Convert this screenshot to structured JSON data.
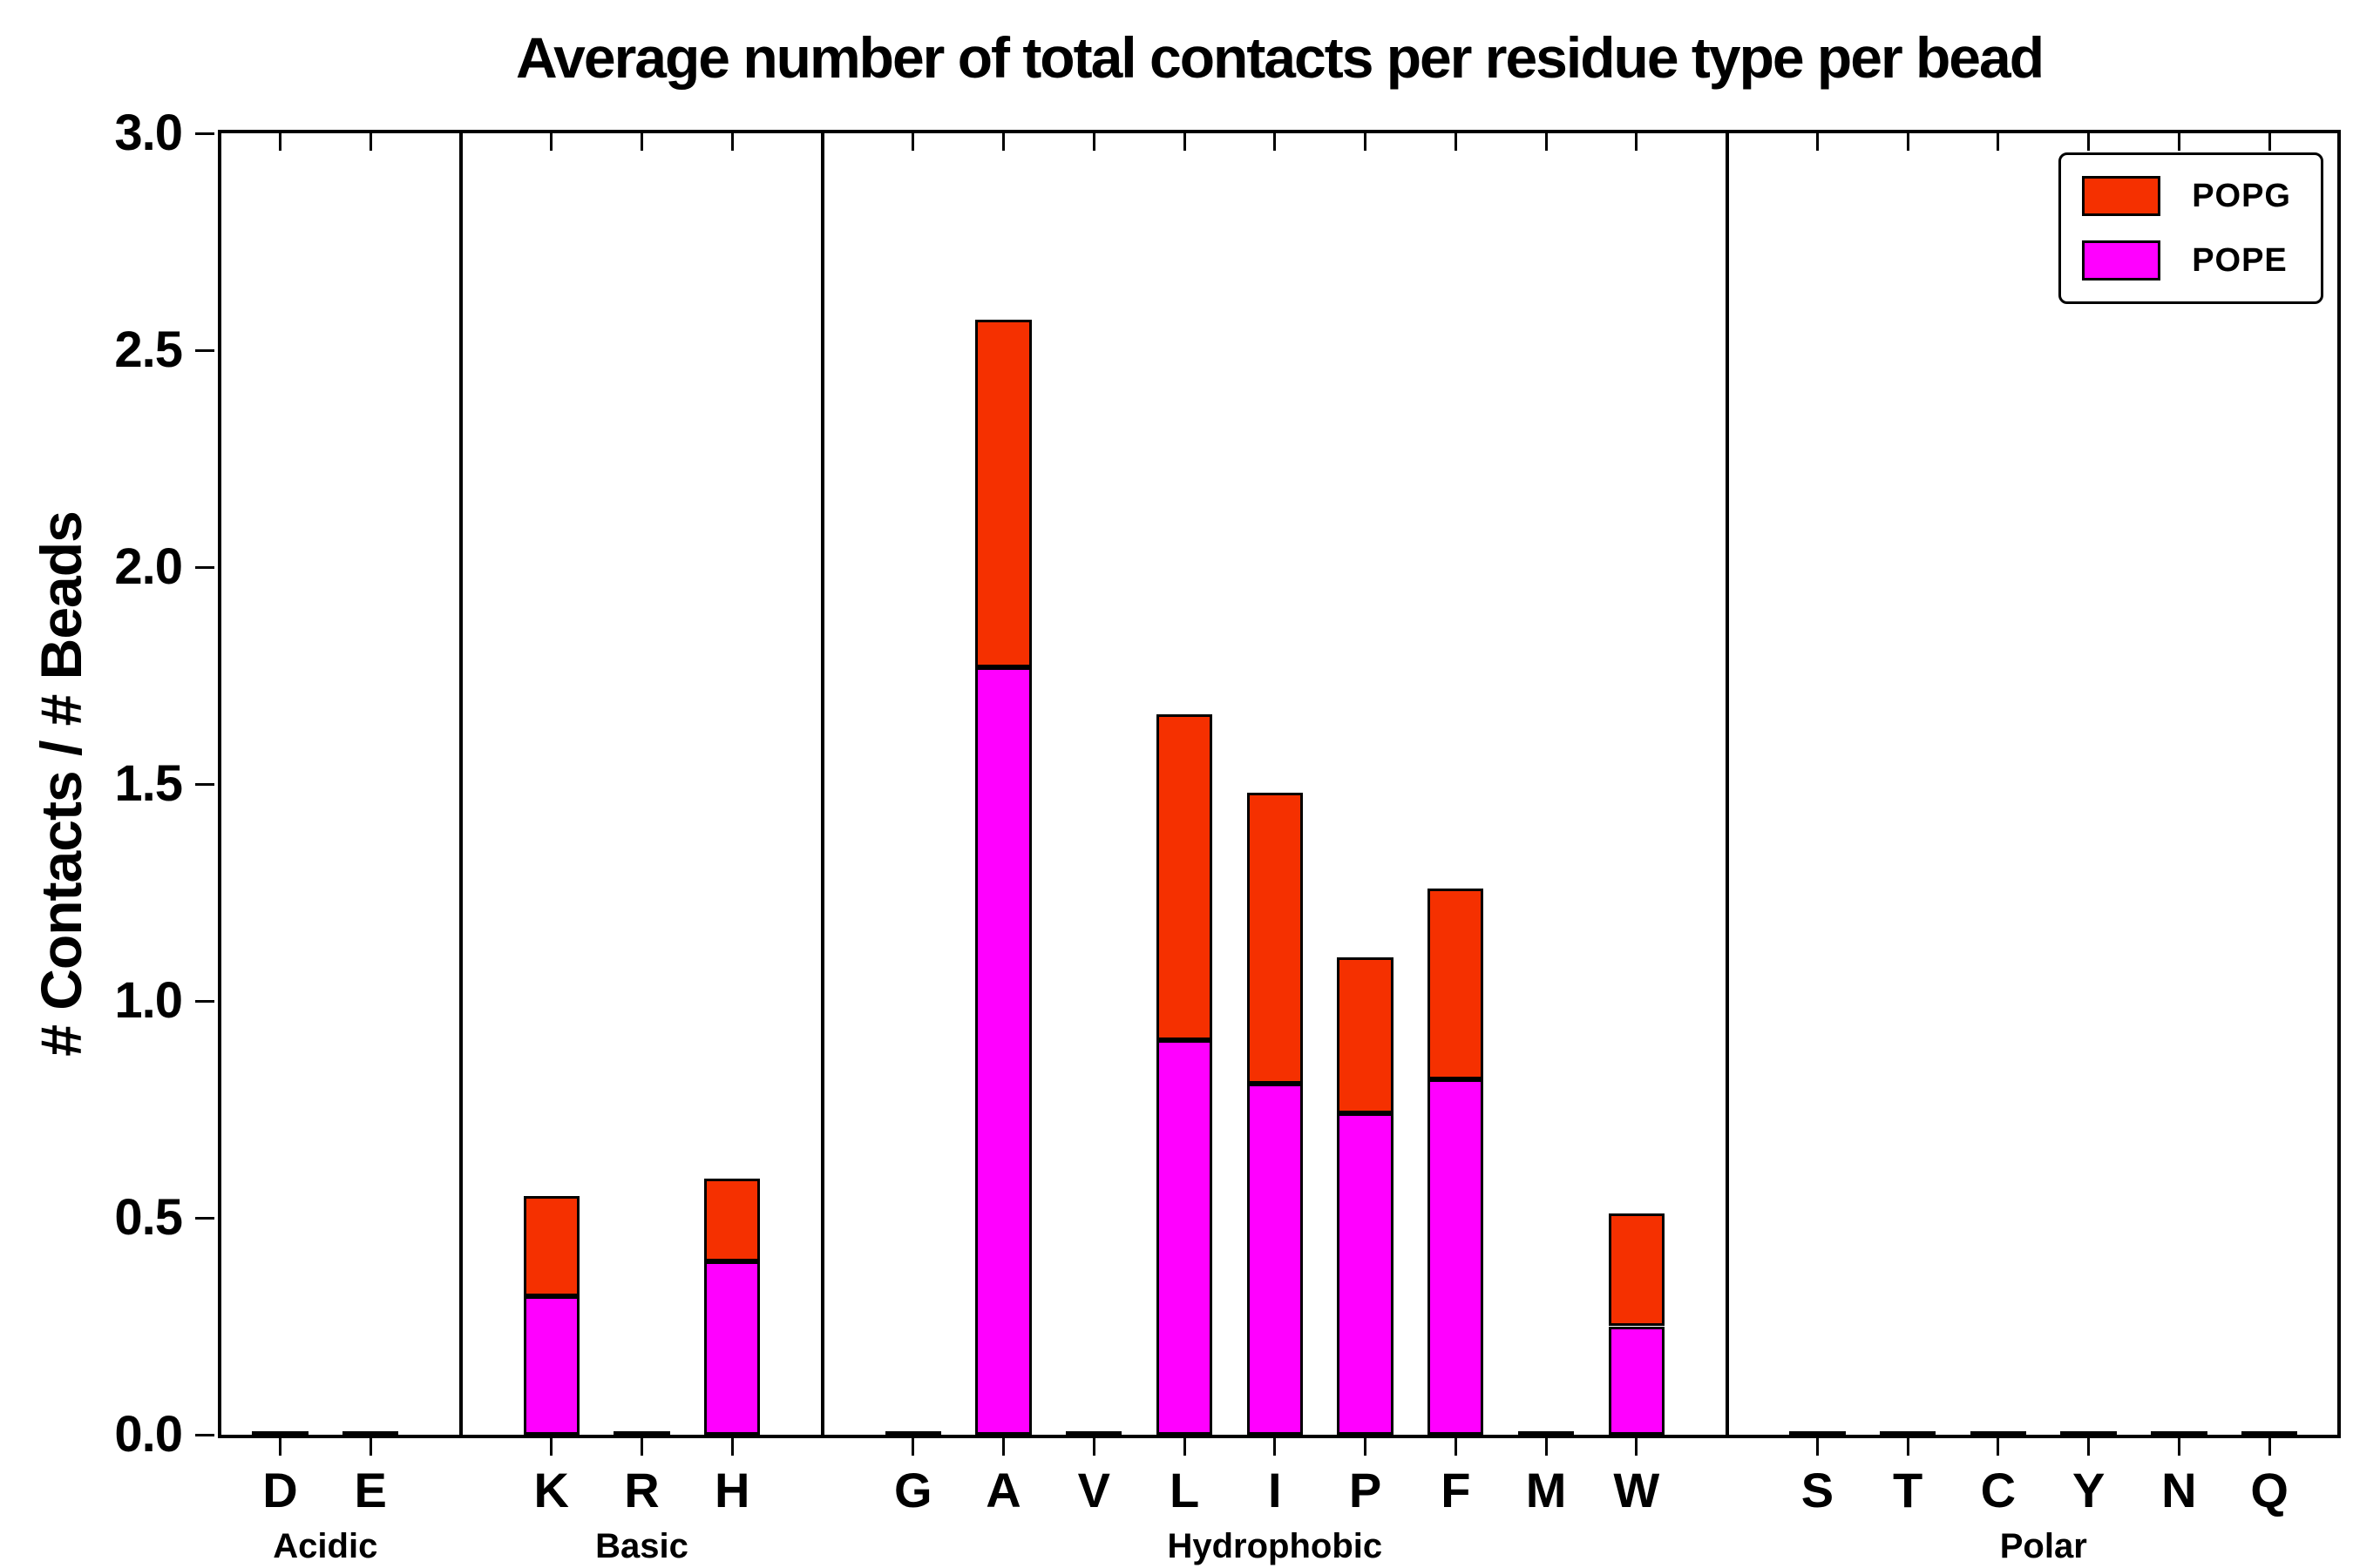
{
  "chart_data": {
    "type": "bar",
    "stacked": true,
    "title": "Average number of total contacts per residue type per bead",
    "xlabel": "",
    "ylabel": "# Contacts / # Beads",
    "ylim": [
      0,
      3.0
    ],
    "yticks": [
      0.0,
      0.5,
      1.0,
      1.5,
      2.0,
      2.5,
      3.0
    ],
    "grid": false,
    "background_color": "#ffffff",
    "axis_color": "#000000",
    "groups": [
      {
        "label": "Acidic",
        "residues": [
          "D",
          "E"
        ]
      },
      {
        "label": "Basic",
        "residues": [
          "K",
          "R",
          "H"
        ]
      },
      {
        "label": "Hydrophobic",
        "residues": [
          "G",
          "A",
          "V",
          "L",
          "I",
          "P",
          "F",
          "M",
          "W"
        ]
      },
      {
        "label": "Polar",
        "residues": [
          "S",
          "T",
          "C",
          "Y",
          "N",
          "Q"
        ]
      }
    ],
    "categories": [
      "D",
      "E",
      "K",
      "R",
      "H",
      "G",
      "A",
      "V",
      "L",
      "I",
      "P",
      "F",
      "M",
      "W",
      "S",
      "T",
      "C",
      "Y",
      "N",
      "Q"
    ],
    "series": [
      {
        "name": "POPE",
        "color": "#FF00FF",
        "values": [
          0,
          0,
          0.32,
          0,
          0.4,
          0,
          1.77,
          0,
          0.91,
          0.81,
          0.74,
          0.82,
          0,
          0.25,
          0,
          0,
          0,
          0,
          0,
          0
        ]
      },
      {
        "name": "POPG",
        "color": "#F53000",
        "values": [
          0,
          0,
          0.23,
          0,
          0.19,
          0,
          0.8,
          0,
          0.75,
          0.67,
          0.36,
          0.44,
          0,
          0.26,
          0,
          0,
          0,
          0,
          0,
          0
        ]
      }
    ],
    "stacked_totals": {
      "K": 0.55,
      "H": 0.59,
      "A": 2.57,
      "L": 1.66,
      "I": 1.48,
      "P": 1.1,
      "F": 1.26,
      "W": 0.51
    },
    "legend": {
      "position": "upper right",
      "entries": [
        "POPG",
        "POPE"
      ]
    }
  }
}
